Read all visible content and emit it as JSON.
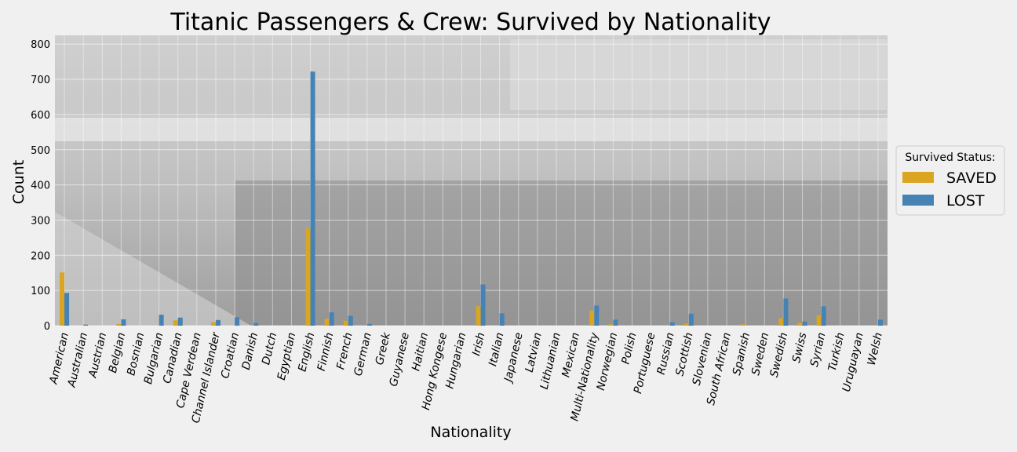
{
  "chart_data": {
    "type": "bar",
    "title": "Titanic Passengers & Crew: Survived by Nationality",
    "xlabel": "Nationality",
    "ylabel": "Count",
    "ylim": [
      0,
      825
    ],
    "yticks": [
      0,
      100,
      200,
      300,
      400,
      500,
      600,
      700,
      800
    ],
    "grid": true,
    "background": "photo of Titanic deck (greyscale)",
    "legend": {
      "title": "Survived Status:",
      "placement": "right"
    },
    "categories": [
      "American",
      "Australian",
      "Austrian",
      "Belgian",
      "Bosnian",
      "Bulgarian",
      "Canadian",
      "Cape Verdean",
      "Channel Islander",
      "Croatian",
      "Danish",
      "Dutch",
      "Egyptian",
      "English",
      "Finnish",
      "French",
      "German",
      "Greek",
      "Guyanese",
      "Haitian",
      "Hong Kongese",
      "Hungarian",
      "Irish",
      "Italian",
      "Japanese",
      "Latvian",
      "Lithuanian",
      "Mexican",
      "Multi-Nationality",
      "Norwegian",
      "Polish",
      "Portuguese",
      "Russian",
      "Scottish",
      "Slovenian",
      "South African",
      "Spanish",
      "Sweden",
      "Swedish",
      "Swiss",
      "Syrian",
      "Turkish",
      "Uruguayan",
      "Welsh"
    ],
    "series": [
      {
        "name": "SAVED",
        "color": "#DAA520",
        "values": [
          151,
          0,
          0,
          5,
          0,
          0,
          15,
          0,
          10,
          0,
          0,
          0,
          0,
          277,
          20,
          14,
          0,
          0,
          0,
          0,
          0,
          0,
          55,
          0,
          0,
          0,
          0,
          0,
          43,
          4,
          0,
          0,
          0,
          6,
          0,
          0,
          4,
          0,
          21,
          9,
          30,
          0,
          0,
          0
        ]
      },
      {
        "name": "LOST",
        "color": "#4682B4",
        "values": [
          93,
          3,
          0,
          18,
          0,
          31,
          23,
          0,
          16,
          24,
          8,
          0,
          0,
          722,
          38,
          28,
          5,
          0,
          0,
          0,
          0,
          0,
          117,
          35,
          0,
          0,
          0,
          0,
          57,
          17,
          0,
          0,
          10,
          34,
          0,
          0,
          0,
          0,
          77,
          12,
          55,
          0,
          0,
          17
        ]
      }
    ]
  }
}
